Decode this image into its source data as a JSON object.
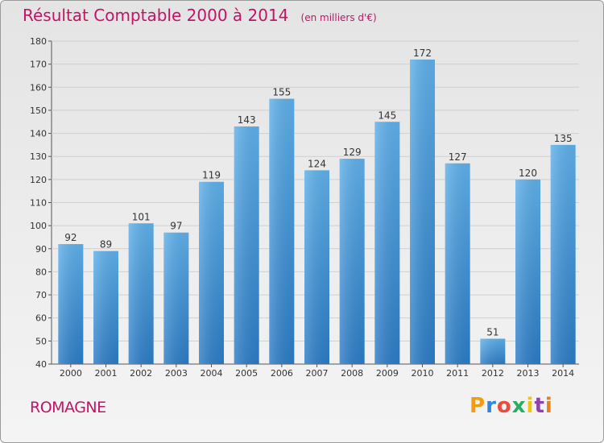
{
  "header": {
    "title": "Résultat Comptable 2000 à 2014",
    "subtitle": "(en milliers d'€)"
  },
  "footer": {
    "commune": "ROMAGNE",
    "logo_text": "Proxiti",
    "logo_colors": [
      "#f39c12",
      "#2e86de",
      "#e74c3c",
      "#27ae60",
      "#f1c40f",
      "#8e44ad",
      "#e67e22"
    ]
  },
  "colors": {
    "title": "#c01466",
    "bar": "#3e8fd6",
    "bar_light": "#5aa8e6",
    "text": "#333333"
  },
  "chart_data": {
    "type": "bar",
    "title": "Résultat Comptable 2000 à 2014",
    "subtitle": "(en milliers d'€)",
    "categories": [
      "2000",
      "2001",
      "2002",
      "2003",
      "2004",
      "2005",
      "2006",
      "2007",
      "2008",
      "2009",
      "2010",
      "2011",
      "2012",
      "2013",
      "2014"
    ],
    "values": [
      92,
      89,
      101,
      97,
      119,
      143,
      155,
      124,
      129,
      145,
      172,
      127,
      51,
      120,
      135
    ],
    "ylim": [
      40,
      180
    ],
    "yticks": [
      40,
      50,
      60,
      70,
      80,
      90,
      100,
      110,
      120,
      130,
      140,
      150,
      160,
      170,
      180
    ],
    "grid": true,
    "data_labels": true
  }
}
